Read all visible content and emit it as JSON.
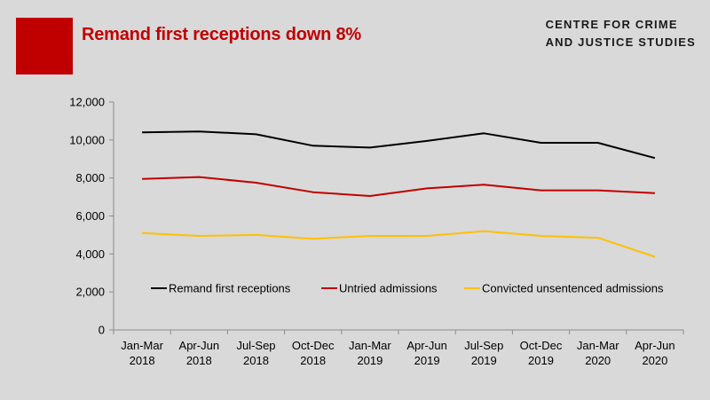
{
  "title": "Remand first receptions down 8%",
  "org": {
    "line1": "CENTRE FOR CRIME",
    "line2": "AND JUSTICE STUDIES"
  },
  "colors": {
    "brand": "#c00000",
    "title": "#c00000",
    "series": [
      "#000000",
      "#c00000",
      "#ffc000"
    ],
    "axis": "#8c8c8c"
  },
  "chart_data": {
    "type": "line",
    "categories": [
      [
        "Jan-Mar",
        "2018"
      ],
      [
        "Apr-Jun",
        "2018"
      ],
      [
        "Jul-Sep",
        "2018"
      ],
      [
        "Oct-Dec",
        "2018"
      ],
      [
        "Jan-Mar",
        "2019"
      ],
      [
        "Apr-Jun",
        "2019"
      ],
      [
        "Jul-Sep",
        "2019"
      ],
      [
        "Oct-Dec",
        "2019"
      ],
      [
        "Jan-Mar",
        "2020"
      ],
      [
        "Apr-Jun",
        "2020"
      ]
    ],
    "ylim": [
      0,
      12000
    ],
    "yticks": [
      "0",
      "2,000",
      "4,000",
      "6,000",
      "8,000",
      "10,000",
      "12,000"
    ],
    "grid": false,
    "legend": "inside-bottom",
    "series": [
      {
        "name": "Remand first receptions",
        "values": [
          10400,
          10450,
          10300,
          9700,
          9600,
          9950,
          10350,
          9850,
          9850,
          9050
        ]
      },
      {
        "name": "Untried admissions",
        "values": [
          7950,
          8050,
          7750,
          7250,
          7050,
          7450,
          7650,
          7350,
          7350,
          7200
        ]
      },
      {
        "name": "Convicted unsentenced admissions",
        "values": [
          5100,
          4950,
          5000,
          4800,
          4950,
          4950,
          5200,
          4950,
          4850,
          3850
        ]
      }
    ]
  }
}
